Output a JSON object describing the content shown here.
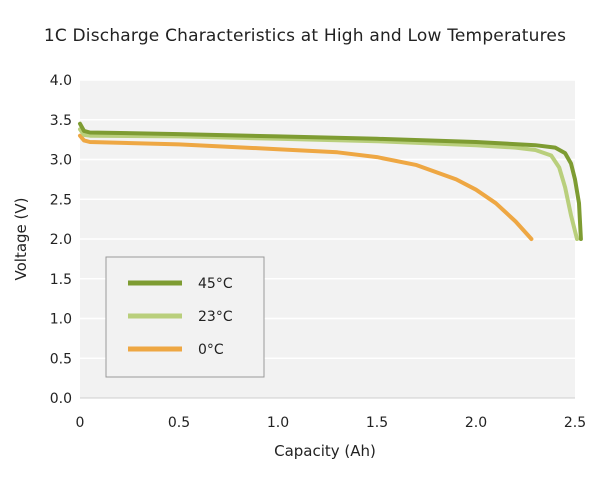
{
  "chart_data": {
    "type": "line",
    "title": "1C Discharge Characteristics at High and Low Temperatures",
    "xlabel": "Capacity (Ah)",
    "ylabel": "Voltage (V)",
    "xlim": [
      0,
      2.5
    ],
    "ylim": [
      0.0,
      4.0
    ],
    "x_ticks": [
      "0",
      "0.5",
      "1.0",
      "1.5",
      "2.0",
      "2.5"
    ],
    "y_ticks": [
      "0.0",
      "0.5",
      "1.0",
      "1.5",
      "2.0",
      "2.5",
      "3.0",
      "3.5",
      "4.0"
    ],
    "grid": true,
    "legend_position": "lower-left",
    "series": [
      {
        "name": "45°C",
        "color": "#7e9c32",
        "points": [
          [
            0,
            3.45
          ],
          [
            0.02,
            3.36
          ],
          [
            0.05,
            3.34
          ],
          [
            0.5,
            3.32
          ],
          [
            1.0,
            3.29
          ],
          [
            1.5,
            3.26
          ],
          [
            2.0,
            3.22
          ],
          [
            2.3,
            3.18
          ],
          [
            2.4,
            3.15
          ],
          [
            2.45,
            3.08
          ],
          [
            2.48,
            2.95
          ],
          [
            2.5,
            2.75
          ],
          [
            2.52,
            2.45
          ],
          [
            2.53,
            2.0
          ]
        ]
      },
      {
        "name": "23°C",
        "color": "#b9cf7c",
        "points": [
          [
            0,
            3.38
          ],
          [
            0.02,
            3.31
          ],
          [
            0.05,
            3.3
          ],
          [
            0.5,
            3.29
          ],
          [
            1.0,
            3.26
          ],
          [
            1.5,
            3.23
          ],
          [
            2.0,
            3.18
          ],
          [
            2.2,
            3.15
          ],
          [
            2.3,
            3.12
          ],
          [
            2.38,
            3.05
          ],
          [
            2.42,
            2.9
          ],
          [
            2.45,
            2.65
          ],
          [
            2.48,
            2.3
          ],
          [
            2.51,
            2.0
          ]
        ]
      },
      {
        "name": "0°C",
        "color": "#eea743",
        "points": [
          [
            0,
            3.3
          ],
          [
            0.02,
            3.24
          ],
          [
            0.05,
            3.22
          ],
          [
            0.5,
            3.19
          ],
          [
            1.0,
            3.13
          ],
          [
            1.3,
            3.09
          ],
          [
            1.5,
            3.03
          ],
          [
            1.7,
            2.93
          ],
          [
            1.9,
            2.75
          ],
          [
            2.0,
            2.62
          ],
          [
            2.1,
            2.45
          ],
          [
            2.2,
            2.22
          ],
          [
            2.28,
            2.0
          ]
        ]
      }
    ]
  }
}
